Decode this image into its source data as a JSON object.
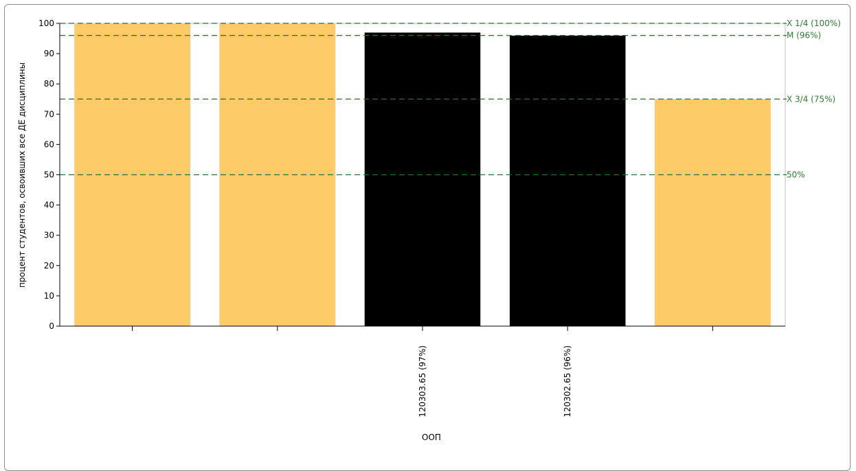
{
  "chart_data": {
    "type": "bar",
    "categories": [
      "",
      "",
      "120303.65 (97%)",
      "120302.65 (96%)",
      ""
    ],
    "values": [
      100,
      100,
      97,
      96,
      75
    ],
    "bar_colors": [
      "#fdcb67",
      "#fdcb67",
      "#000000",
      "#000000",
      "#fdcb67"
    ],
    "xlabel": "ООП",
    "ylabel": "процент студентов, освоивших все ДЕ дисциплины",
    "ylim": [
      0,
      100
    ],
    "yticks": [
      0,
      10,
      20,
      30,
      40,
      50,
      60,
      70,
      80,
      90,
      100
    ],
    "reference_lines": [
      {
        "value": 100,
        "label": "X 1/4 (100%)"
      },
      {
        "value": 96,
        "label": "M (96%)"
      },
      {
        "value": 75,
        "label": "X 3/4 (75%)"
      },
      {
        "value": 50,
        "label": "50%"
      }
    ],
    "reference_line_color": "#2e6b2e",
    "reference_label_color": "#2e7d32"
  }
}
